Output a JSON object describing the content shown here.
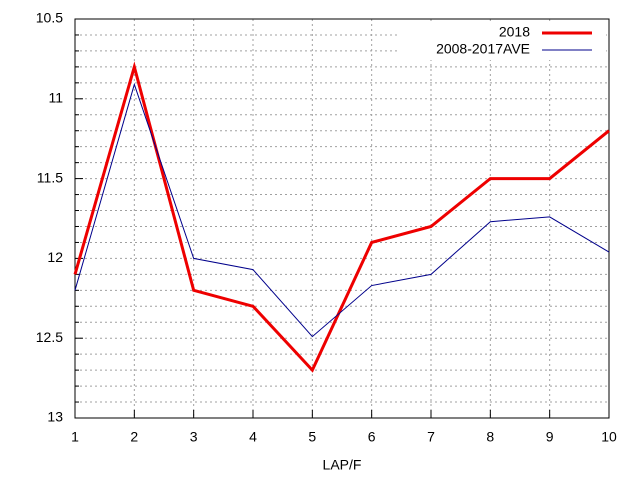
{
  "chart_data": {
    "type": "line",
    "xlabel": "LAP/F",
    "x": [
      1,
      2,
      3,
      4,
      5,
      6,
      7,
      8,
      9,
      10
    ],
    "series": [
      {
        "name": "2018",
        "color": "#ee0000",
        "values": [
          12.1,
          10.8,
          12.2,
          12.3,
          12.7,
          11.9,
          11.8,
          11.5,
          11.5,
          11.2
        ]
      },
      {
        "name": "2008-2017AVE",
        "color": "#00008b",
        "values": [
          12.2,
          10.91,
          12.0,
          12.07,
          12.49,
          12.17,
          12.1,
          11.77,
          11.74,
          11.96
        ]
      }
    ],
    "xlim": [
      1,
      10
    ],
    "xticks": [
      1,
      2,
      3,
      4,
      5,
      6,
      7,
      8,
      9,
      10
    ],
    "ylim": [
      13,
      10.5
    ],
    "yticks": [
      10.5,
      11,
      11.5,
      12,
      12.5,
      13
    ],
    "yminorticks": [
      10.6,
      10.7,
      10.8,
      10.9,
      11.1,
      11.2,
      11.3,
      11.4,
      11.6,
      11.7,
      11.8,
      11.9,
      12.1,
      12.2,
      12.3,
      12.4,
      12.6,
      12.7,
      12.8,
      12.9
    ],
    "grid": true,
    "legend": "top-right"
  }
}
